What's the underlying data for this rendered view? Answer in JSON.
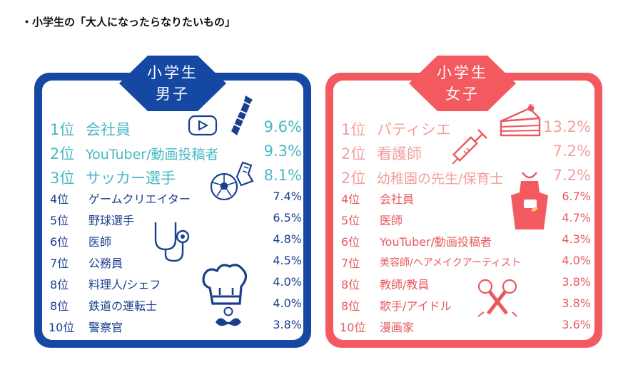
{
  "heading": "・小学生の「大人になったらなりたいもの」",
  "colors": {
    "boys_frame": "#1548a3",
    "boys_top3_text": "#4ab8c4",
    "boys_text": "#1a3f8f",
    "girls_frame": "#f25a5f",
    "girls_top3_text": "#f4a0a0",
    "girls_text": "#e85a5e"
  },
  "chart_data": [
    {
      "type": "table",
      "title_lines": [
        "小学生",
        "男子"
      ],
      "icons": [
        "video-play-icon",
        "necktie-icon",
        "soccer-ball-icon",
        "stethoscope-icon",
        "chef-hat-icon",
        "mustache-icon"
      ],
      "rows": [
        {
          "rank": "1位",
          "job": "会社員",
          "percent_label": "9.6%",
          "value": 9.6
        },
        {
          "rank": "2位",
          "job": "YouTuber/動画投稿者",
          "percent_label": "9.3%",
          "value": 9.3
        },
        {
          "rank": "3位",
          "job": "サッカー選手",
          "percent_label": "8.1%",
          "value": 8.1
        },
        {
          "rank": "4位",
          "job": "ゲームクリエイター",
          "percent_label": "7.4%",
          "value": 7.4
        },
        {
          "rank": "5位",
          "job": "野球選手",
          "percent_label": "6.5%",
          "value": 6.5
        },
        {
          "rank": "6位",
          "job": "医師",
          "percent_label": "4.8%",
          "value": 4.8
        },
        {
          "rank": "7位",
          "job": "公務員",
          "percent_label": "4.5%",
          "value": 4.5
        },
        {
          "rank": "8位",
          "job": "料理人/シェフ",
          "percent_label": "4.0%",
          "value": 4.0
        },
        {
          "rank": "8位",
          "job": "鉄道の運転士",
          "percent_label": "4.0%",
          "value": 4.0
        },
        {
          "rank": "10位",
          "job": "警察官",
          "percent_label": "3.8%",
          "value": 3.8
        }
      ]
    },
    {
      "type": "table",
      "title_lines": [
        "小学生",
        "女子"
      ],
      "icons": [
        "cake-icon",
        "syringe-icon",
        "apron-icon",
        "microphones-icon"
      ],
      "rows": [
        {
          "rank": "1位",
          "job": "パティシエ",
          "percent_label": "13.2%",
          "value": 13.2
        },
        {
          "rank": "2位",
          "job": "看護師",
          "percent_label": "7.2%",
          "value": 7.2
        },
        {
          "rank": "2位",
          "job": "幼稚園の先生/保育士",
          "percent_label": "7.2%",
          "value": 7.2
        },
        {
          "rank": "4位",
          "job": "会社員",
          "percent_label": "6.7%",
          "value": 6.7
        },
        {
          "rank": "5位",
          "job": "医師",
          "percent_label": "4.7%",
          "value": 4.7
        },
        {
          "rank": "6位",
          "job": "YouTuber/動画投稿者",
          "percent_label": "4.3%",
          "value": 4.3
        },
        {
          "rank": "7位",
          "job": "美容師/ヘアメイクアーティスト",
          "percent_label": "4.0%",
          "value": 4.0
        },
        {
          "rank": "8位",
          "job": "教師/教員",
          "percent_label": "3.8%",
          "value": 3.8
        },
        {
          "rank": "8位",
          "job": "歌手/アイドル",
          "percent_label": "3.8%",
          "value": 3.8
        },
        {
          "rank": "10位",
          "job": "漫画家",
          "percent_label": "3.6%",
          "value": 3.6
        }
      ]
    }
  ]
}
